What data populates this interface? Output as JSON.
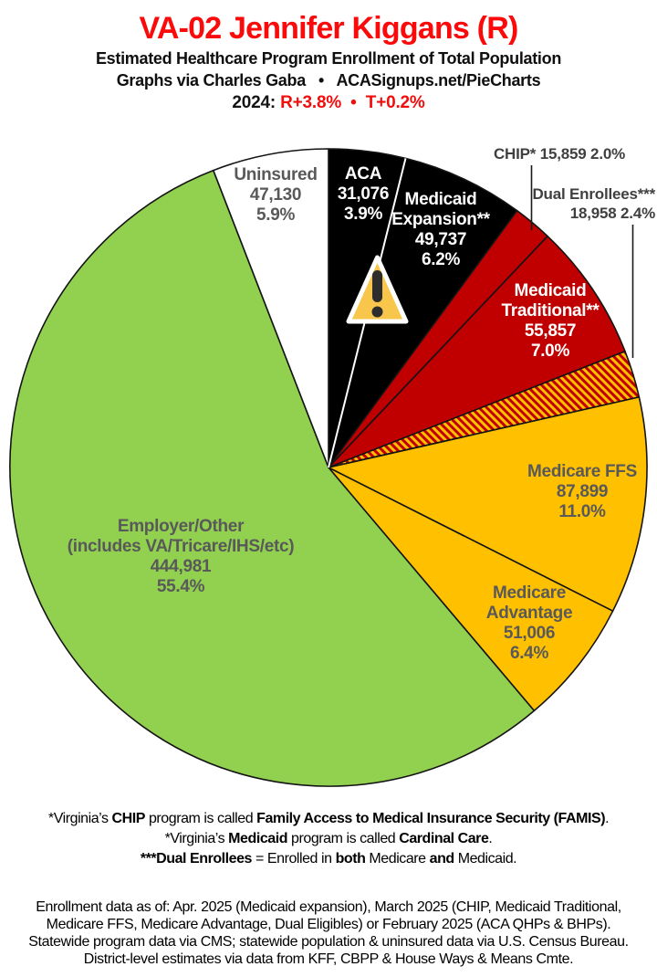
{
  "header": {
    "title": "VA-02 Jennifer Kiggans (R)",
    "subtitle": "Estimated Healthcare Program Enrollment of Total Population",
    "byline": "Graphs via Charles Gaba   •   ACASignups.net/PieCharts",
    "year_label": "2024: ",
    "year_values": "R+3.8%  •  T+0.2%"
  },
  "colors": {
    "title_red": "#fa0a0a",
    "accent_red": "#f20d0d",
    "slice_black": "#000000",
    "slice_red": "#c00000",
    "slice_amber": "#ffc000",
    "slice_green": "#92d050",
    "slice_white": "#ffffff",
    "inside_label_gray": "#595959",
    "outside_label_gray": "#404040",
    "warning_amber": "#f7c64a",
    "warning_glyph": "#2d2d2d"
  },
  "chart_data": {
    "type": "pie",
    "title": "VA-02 Jennifer Kiggans (R)",
    "subtitle": "Estimated Healthcare Program Enrollment of Total Population",
    "start_angle_deg": 0,
    "direction": "clockwise",
    "white_divider_after_index": 0,
    "hatch_colors": [
      "#ffc000",
      "#c00000"
    ],
    "slices": [
      {
        "name": "ACA",
        "value": 31076,
        "pct": 3.9,
        "color": "#000000",
        "label_placement": "inside",
        "lines": [
          "ACA",
          "31,076",
          "3.9%"
        ]
      },
      {
        "name": "Medicaid Expansion**",
        "value": 49737,
        "pct": 6.2,
        "color": "#000000",
        "label_placement": "inside",
        "lines": [
          "Medicaid",
          "Expansion**",
          "49,737",
          "6.2%"
        ]
      },
      {
        "name": "CHIP*",
        "value": 15859,
        "pct": 2.0,
        "color": "#c00000",
        "label_placement": "outside",
        "lines": [
          "CHIP* 15,859 2.0%"
        ]
      },
      {
        "name": "Medicaid Traditional**",
        "value": 55857,
        "pct": 7.0,
        "color": "#c00000",
        "label_placement": "inside",
        "lines": [
          "Medicaid",
          "Traditional**",
          "55,857",
          "7.0%"
        ]
      },
      {
        "name": "Dual Enrollees***",
        "value": 18958,
        "pct": 2.4,
        "color": "hatch",
        "label_placement": "outside",
        "lines": [
          "Dual Enrollees***",
          "18,958 2.4%"
        ]
      },
      {
        "name": "Medicare FFS",
        "value": 87899,
        "pct": 11.0,
        "color": "#ffc000",
        "label_placement": "inside",
        "lines": [
          "Medicare FFS",
          "87,899",
          "11.0%"
        ]
      },
      {
        "name": "Medicare Advantage",
        "value": 51006,
        "pct": 6.4,
        "color": "#ffc000",
        "label_placement": "inside",
        "lines": [
          "Medicare",
          "Advantage",
          "51,006",
          "6.4%"
        ]
      },
      {
        "name": "Employer/Other",
        "value": 444981,
        "pct": 55.4,
        "color": "#92d050",
        "label_placement": "inside",
        "lines": [
          "Employer/Other",
          "(includes VA/Tricare/IHS/etc)",
          "444,981",
          "55.4%"
        ]
      },
      {
        "name": "Uninsured",
        "value": 47130,
        "pct": 5.9,
        "color": "#ffffff",
        "label_placement": "inside",
        "lines": [
          "Uninsured",
          "47,130",
          "5.9%"
        ]
      }
    ]
  },
  "footnotes": {
    "line1": {
      "s0": "*Virginia’s ",
      "s1": "CHIP",
      "s2": " program is called ",
      "s3": "Family Access to Medical Insurance Security (FAMIS)",
      "s4": "."
    },
    "line2": {
      "s0": "*Virginia’s ",
      "s1": "Medicaid",
      "s2": " program is called ",
      "s3": "Cardinal Care",
      "s4": "."
    },
    "line3": {
      "s0": "***Dual Enrollees",
      "s1": " = Enrolled in ",
      "s2": "both",
      "s3": " Medicare ",
      "s4": "and",
      "s5": " Medicaid."
    }
  },
  "source_note": {
    "lines": [
      "Enrollment data as of: Apr. 2025 (Medicaid expansion), March 2025 (CHIP, Medicaid Traditional,",
      "Medicare FFS, Medicare Advantage, Dual Eligibles) or February 2025 (ACA QHPs & BHPs).",
      "Statewide program data via CMS; statewide population & uninsured data via U.S. Census Bureau.",
      "District-level estimates via data from KFF, CBPP & House Ways & Means Cmte."
    ]
  }
}
